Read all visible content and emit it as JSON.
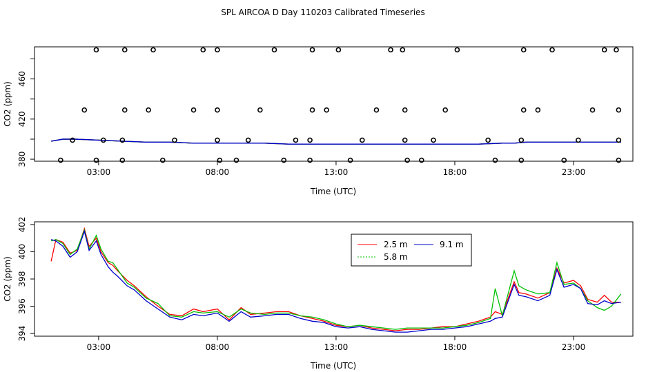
{
  "title": "SPL AIRCOA D  Day 110203  Calibrated Timeseries",
  "chart_data": [
    {
      "type": "scatter",
      "xlabel": "Time (UTC)",
      "ylabel": "CO2 (ppm)",
      "xlim": [
        0.3,
        25.5
      ],
      "ylim": [
        378,
        492
      ],
      "xticks": [
        {
          "v": 3,
          "label": "03:00"
        },
        {
          "v": 8,
          "label": "08:00"
        },
        {
          "v": 13,
          "label": "13:00"
        },
        {
          "v": 18,
          "label": "18:00"
        },
        {
          "v": 23,
          "label": "23:00"
        }
      ],
      "yticks": [
        {
          "v": 380,
          "label": "380"
        },
        {
          "v": 420,
          "label": "420"
        },
        {
          "v": 460,
          "label": "460"
        }
      ],
      "extra_yticks": [
        400,
        440,
        480
      ],
      "points": [
        {
          "x": 1.4,
          "y": 379
        },
        {
          "x": 2.9,
          "y": 379
        },
        {
          "x": 4.0,
          "y": 379
        },
        {
          "x": 5.7,
          "y": 379
        },
        {
          "x": 8.1,
          "y": 379
        },
        {
          "x": 8.8,
          "y": 379
        },
        {
          "x": 10.8,
          "y": 379
        },
        {
          "x": 11.9,
          "y": 379
        },
        {
          "x": 13.6,
          "y": 379
        },
        {
          "x": 16.0,
          "y": 379
        },
        {
          "x": 16.6,
          "y": 379
        },
        {
          "x": 19.7,
          "y": 379
        },
        {
          "x": 20.8,
          "y": 379
        },
        {
          "x": 22.6,
          "y": 379
        },
        {
          "x": 24.9,
          "y": 379
        },
        {
          "x": 1.9,
          "y": 399
        },
        {
          "x": 3.2,
          "y": 399
        },
        {
          "x": 4.0,
          "y": 399
        },
        {
          "x": 6.2,
          "y": 399
        },
        {
          "x": 8.0,
          "y": 399
        },
        {
          "x": 9.3,
          "y": 399
        },
        {
          "x": 11.3,
          "y": 399
        },
        {
          "x": 11.9,
          "y": 399
        },
        {
          "x": 14.1,
          "y": 399
        },
        {
          "x": 15.9,
          "y": 399
        },
        {
          "x": 17.1,
          "y": 399
        },
        {
          "x": 19.4,
          "y": 399
        },
        {
          "x": 20.8,
          "y": 399
        },
        {
          "x": 23.2,
          "y": 399
        },
        {
          "x": 24.9,
          "y": 399
        },
        {
          "x": 2.4,
          "y": 429
        },
        {
          "x": 4.1,
          "y": 429
        },
        {
          "x": 5.1,
          "y": 429
        },
        {
          "x": 7.0,
          "y": 429
        },
        {
          "x": 8.0,
          "y": 429
        },
        {
          "x": 9.8,
          "y": 429
        },
        {
          "x": 12.0,
          "y": 429
        },
        {
          "x": 12.6,
          "y": 429
        },
        {
          "x": 14.7,
          "y": 429
        },
        {
          "x": 15.9,
          "y": 429
        },
        {
          "x": 17.6,
          "y": 429
        },
        {
          "x": 20.9,
          "y": 429
        },
        {
          "x": 21.5,
          "y": 429
        },
        {
          "x": 23.8,
          "y": 429
        },
        {
          "x": 24.9,
          "y": 429
        },
        {
          "x": 2.9,
          "y": 489
        },
        {
          "x": 4.1,
          "y": 489
        },
        {
          "x": 5.3,
          "y": 489
        },
        {
          "x": 7.4,
          "y": 489
        },
        {
          "x": 8.0,
          "y": 489
        },
        {
          "x": 10.4,
          "y": 489
        },
        {
          "x": 12.0,
          "y": 489
        },
        {
          "x": 13.1,
          "y": 489
        },
        {
          "x": 15.3,
          "y": 489
        },
        {
          "x": 15.8,
          "y": 489
        },
        {
          "x": 18.1,
          "y": 489
        },
        {
          "x": 20.9,
          "y": 489
        },
        {
          "x": 22.1,
          "y": 489
        },
        {
          "x": 24.3,
          "y": 489
        },
        {
          "x": 24.8,
          "y": 489
        }
      ],
      "series": [
        {
          "name": "2.5 m",
          "color": "#ff0000",
          "x": [
            1,
            1.5,
            2,
            3,
            4,
            5,
            6,
            7,
            8,
            9,
            10,
            11,
            12,
            13,
            14,
            15,
            16,
            17,
            18,
            19,
            20,
            20.5,
            21,
            21.5,
            22,
            22.5,
            23,
            23.5,
            24,
            25
          ],
          "values": [
            398,
            400,
            400,
            399,
            398,
            397,
            397,
            396,
            396,
            396,
            396,
            395,
            395,
            395,
            395,
            395,
            395,
            395,
            395,
            395,
            396,
            396,
            397,
            397,
            397,
            397,
            397,
            397,
            397,
            397
          ]
        },
        {
          "name": "5.8 m",
          "color": "#00c000",
          "x": [
            1,
            1.5,
            2,
            3,
            4,
            5,
            6,
            7,
            8,
            9,
            10,
            11,
            12,
            13,
            14,
            15,
            16,
            17,
            18,
            19,
            20,
            20.5,
            21,
            21.5,
            22,
            22.5,
            23,
            23.5,
            24,
            25
          ],
          "values": [
            398,
            400,
            400,
            399,
            398,
            397,
            397,
            396,
            396,
            396,
            396,
            395,
            395,
            395,
            395,
            395,
            395,
            395,
            395,
            395,
            396,
            396,
            397,
            397,
            397,
            397,
            397,
            397,
            397,
            397
          ]
        },
        {
          "name": "9.1 m",
          "color": "#0000cc",
          "x": [
            1,
            1.5,
            2,
            3,
            4,
            5,
            6,
            7,
            8,
            9,
            10,
            11,
            12,
            13,
            14,
            15,
            16,
            17,
            18,
            19,
            20,
            20.5,
            21,
            21.5,
            22,
            22.5,
            23,
            23.5,
            24,
            25
          ],
          "values": [
            398,
            400,
            400,
            399,
            398,
            397,
            397,
            396,
            396,
            396,
            396,
            395,
            395,
            395,
            395,
            395,
            395,
            395,
            395,
            395,
            396,
            396,
            397,
            397,
            397,
            397,
            397,
            397,
            397,
            397
          ]
        }
      ]
    },
    {
      "type": "line",
      "xlabel": "Time (UTC)",
      "ylabel": "CO2 (ppm)",
      "xlim": [
        0.3,
        25.5
      ],
      "ylim": [
        393.8,
        402.2
      ],
      "xticks": [
        {
          "v": 3,
          "label": "03:00"
        },
        {
          "v": 8,
          "label": "08:00"
        },
        {
          "v": 13,
          "label": "13:00"
        },
        {
          "v": 18,
          "label": "18:00"
        },
        {
          "v": 23,
          "label": "23:00"
        }
      ],
      "yticks": [
        {
          "v": 394,
          "label": "394"
        },
        {
          "v": 396,
          "label": "396"
        },
        {
          "v": 398,
          "label": "398"
        },
        {
          "v": 400,
          "label": "400"
        },
        {
          "v": 402,
          "label": "402"
        }
      ],
      "legend": {
        "entries_left": [
          "2.5 m",
          "5.8 m"
        ],
        "entries_right": [
          "9.1 m"
        ]
      },
      "series": [
        {
          "name": "2.5 m",
          "color": "#ff0000",
          "x": [
            1.0,
            1.2,
            1.5,
            1.8,
            2.1,
            2.4,
            2.6,
            2.9,
            3.1,
            3.4,
            3.6,
            3.8,
            4.2,
            4.5,
            5.0,
            5.5,
            6.0,
            6.5,
            7.0,
            7.4,
            8.0,
            8.5,
            9.0,
            9.4,
            10.0,
            10.5,
            11.0,
            11.5,
            12.0,
            12.5,
            13.0,
            13.5,
            14.0,
            14.5,
            15.0,
            15.5,
            16.0,
            16.5,
            17.0,
            17.5,
            18.0,
            18.5,
            19.0,
            19.5,
            19.7,
            20.0,
            20.5,
            20.7,
            21.0,
            21.5,
            22.0,
            22.3,
            22.6,
            23.0,
            23.3,
            23.6,
            24.0,
            24.3,
            24.6,
            25.0
          ],
          "values": [
            399.3,
            400.9,
            400.7,
            399.9,
            400.1,
            401.7,
            400.4,
            401.0,
            400.0,
            399.2,
            399.0,
            398.6,
            397.9,
            397.5,
            396.7,
            396.0,
            395.4,
            395.3,
            395.8,
            395.6,
            395.8,
            395.0,
            395.9,
            395.4,
            395.5,
            395.6,
            395.6,
            395.3,
            395.1,
            394.9,
            394.6,
            394.5,
            394.6,
            394.4,
            394.3,
            394.2,
            394.3,
            394.3,
            394.4,
            394.5,
            394.5,
            394.7,
            394.9,
            395.2,
            395.6,
            395.4,
            397.8,
            397.0,
            396.9,
            396.6,
            397.0,
            398.8,
            397.7,
            397.9,
            397.5,
            396.5,
            396.3,
            396.8,
            396.3,
            396.3
          ]
        },
        {
          "name": "5.8 m",
          "color": "#00c000",
          "x": [
            1.0,
            1.2,
            1.5,
            1.8,
            2.1,
            2.4,
            2.6,
            2.9,
            3.1,
            3.4,
            3.6,
            3.8,
            4.2,
            4.5,
            5.0,
            5.5,
            6.0,
            6.5,
            7.0,
            7.4,
            8.0,
            8.5,
            9.0,
            9.4,
            10.0,
            10.5,
            11.0,
            11.5,
            12.0,
            12.5,
            13.0,
            13.5,
            14.0,
            14.5,
            15.0,
            15.5,
            16.0,
            16.5,
            17.0,
            17.5,
            18.0,
            18.5,
            19.0,
            19.5,
            19.7,
            20.0,
            20.5,
            20.7,
            21.0,
            21.5,
            22.0,
            22.3,
            22.6,
            23.0,
            23.3,
            23.6,
            24.0,
            24.3,
            24.6,
            25.0
          ],
          "values": [
            400.8,
            400.9,
            400.6,
            399.8,
            400.2,
            401.6,
            400.2,
            401.2,
            400.2,
            399.3,
            399.2,
            398.7,
            397.7,
            397.4,
            396.6,
            396.2,
            395.3,
            395.2,
            395.6,
            395.5,
            395.6,
            395.2,
            395.8,
            395.5,
            395.4,
            395.5,
            395.5,
            395.3,
            395.2,
            395.0,
            394.7,
            394.5,
            394.6,
            394.5,
            394.4,
            394.3,
            394.4,
            394.4,
            394.4,
            394.4,
            394.5,
            394.6,
            394.8,
            395.1,
            397.3,
            395.3,
            398.6,
            397.5,
            397.2,
            396.9,
            397.0,
            399.2,
            397.6,
            397.7,
            397.3,
            396.4,
            395.9,
            395.7,
            396.0,
            396.9
          ]
        },
        {
          "name": "9.1 m",
          "color": "#0000cc",
          "x": [
            1.0,
            1.2,
            1.5,
            1.8,
            2.1,
            2.4,
            2.6,
            2.9,
            3.1,
            3.4,
            3.6,
            3.8,
            4.2,
            4.5,
            5.0,
            5.5,
            6.0,
            6.5,
            7.0,
            7.4,
            8.0,
            8.5,
            9.0,
            9.4,
            10.0,
            10.5,
            11.0,
            11.5,
            12.0,
            12.5,
            13.0,
            13.5,
            14.0,
            14.5,
            15.0,
            15.5,
            16.0,
            16.5,
            17.0,
            17.5,
            18.0,
            18.5,
            19.0,
            19.5,
            19.7,
            20.0,
            20.5,
            20.7,
            21.0,
            21.5,
            22.0,
            22.3,
            22.6,
            23.0,
            23.3,
            23.6,
            24.0,
            24.3,
            24.6,
            25.0
          ],
          "values": [
            400.9,
            400.8,
            400.4,
            399.6,
            400.0,
            401.5,
            400.1,
            400.8,
            399.8,
            398.9,
            398.5,
            398.2,
            397.5,
            397.2,
            396.4,
            395.8,
            395.2,
            395.0,
            395.4,
            395.3,
            395.5,
            394.9,
            395.6,
            395.2,
            395.3,
            395.4,
            395.4,
            395.1,
            394.9,
            394.8,
            394.5,
            394.4,
            394.5,
            394.3,
            394.2,
            394.1,
            394.1,
            394.2,
            394.3,
            394.3,
            394.4,
            394.5,
            394.7,
            394.9,
            395.1,
            395.2,
            397.6,
            396.8,
            396.7,
            396.4,
            396.8,
            398.7,
            397.4,
            397.6,
            397.3,
            396.2,
            396.1,
            396.4,
            396.2,
            396.3
          ]
        }
      ]
    }
  ]
}
